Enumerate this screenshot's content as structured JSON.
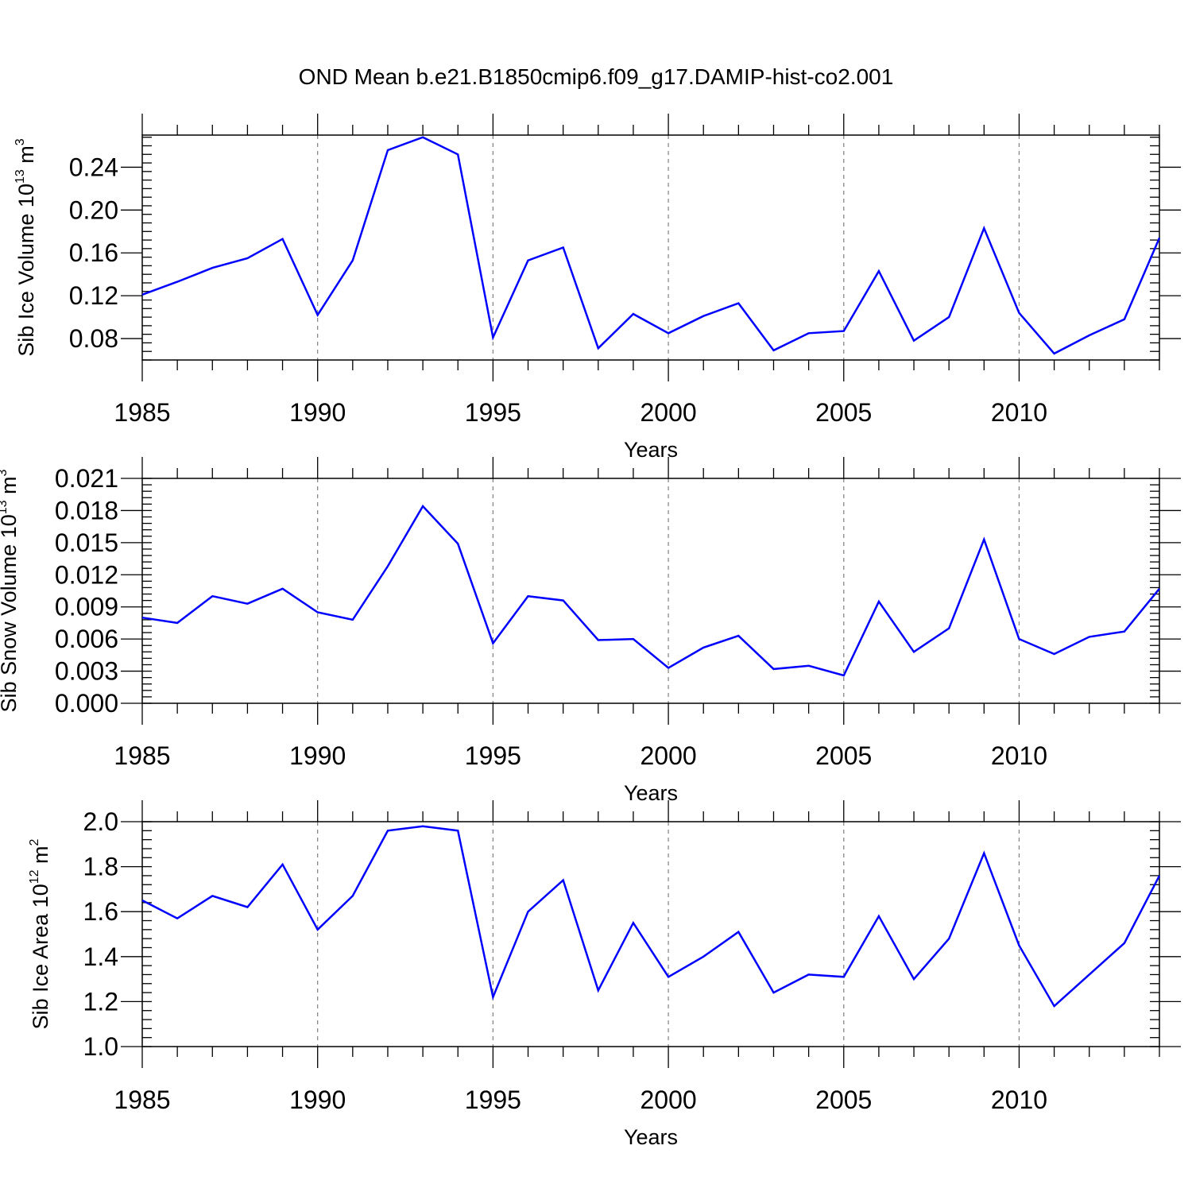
{
  "title": "OND Mean b.e21.B1850cmip6.f09_g17.DAMIP-hist-co2.001",
  "chart_data": [
    {
      "type": "line",
      "ylabel": {
        "text": "Sib Ice Volume 10",
        "exp": "13",
        "unit": " m",
        "unit_exp": "3"
      },
      "xlabel": "Years",
      "xlim": [
        1985,
        2014
      ],
      "ylim": [
        0.06,
        0.27
      ],
      "xticks": [
        1985,
        1990,
        1995,
        2000,
        2005,
        2010
      ],
      "xtick_labels": [
        "1985",
        "1990",
        "1995",
        "2000",
        "2005",
        "2010"
      ],
      "yticks": [
        0.08,
        0.12,
        0.16,
        0.2,
        0.24
      ],
      "ytick_labels": [
        "0.08",
        "0.12",
        "0.16",
        "0.20",
        "0.24"
      ],
      "y_minor_step": 0.008,
      "grid": "vertical-dashed",
      "color": "#0000ff",
      "x": [
        1985,
        1986,
        1987,
        1988,
        1989,
        1990,
        1991,
        1992,
        1993,
        1994,
        1995,
        1996,
        1997,
        1998,
        1999,
        2000,
        2001,
        2002,
        2003,
        2004,
        2005,
        2006,
        2007,
        2008,
        2009,
        2010,
        2011,
        2012,
        2013,
        2014
      ],
      "y": [
        0.121,
        0.133,
        0.146,
        0.155,
        0.173,
        0.102,
        0.153,
        0.256,
        0.268,
        0.252,
        0.081,
        0.153,
        0.165,
        0.071,
        0.103,
        0.085,
        0.101,
        0.113,
        0.069,
        0.085,
        0.087,
        0.143,
        0.078,
        0.1,
        0.183,
        0.104,
        0.066,
        0.083,
        0.098,
        0.174
      ]
    },
    {
      "type": "line",
      "ylabel": {
        "text": "Sib Snow Volume 10",
        "exp": "13",
        "unit": " m",
        "unit_exp": "3"
      },
      "xlabel": "Years",
      "xlim": [
        1985,
        2014
      ],
      "ylim": [
        0.0,
        0.021
      ],
      "xticks": [
        1985,
        1990,
        1995,
        2000,
        2005,
        2010
      ],
      "xtick_labels": [
        "1985",
        "1990",
        "1995",
        "2000",
        "2005",
        "2010"
      ],
      "yticks": [
        0.0,
        0.003,
        0.006,
        0.009,
        0.012,
        0.015,
        0.018,
        0.021
      ],
      "ytick_labels": [
        "0.000",
        "0.003",
        "0.006",
        "0.009",
        "0.012",
        "0.015",
        "0.018",
        "0.021"
      ],
      "y_minor_step": 0.0006,
      "grid": "vertical-dashed",
      "color": "#0000ff",
      "x": [
        1985,
        1986,
        1987,
        1988,
        1989,
        1990,
        1991,
        1992,
        1993,
        1994,
        1995,
        1996,
        1997,
        1998,
        1999,
        2000,
        2001,
        2002,
        2003,
        2004,
        2005,
        2006,
        2007,
        2008,
        2009,
        2010,
        2011,
        2012,
        2013,
        2014
      ],
      "y": [
        0.008,
        0.0075,
        0.01,
        0.0093,
        0.0107,
        0.0085,
        0.0078,
        0.0128,
        0.0184,
        0.0149,
        0.0056,
        0.01,
        0.0096,
        0.0059,
        0.006,
        0.0033,
        0.0052,
        0.0063,
        0.0032,
        0.0035,
        0.0026,
        0.0095,
        0.0048,
        0.007,
        0.0153,
        0.006,
        0.0046,
        0.0062,
        0.0067,
        0.0107
      ]
    },
    {
      "type": "line",
      "ylabel": {
        "text": "Sib Ice Area 10",
        "exp": "12",
        "unit": " m",
        "unit_exp": "2"
      },
      "xlabel": "Years",
      "xlim": [
        1985,
        2014
      ],
      "ylim": [
        1.0,
        2.0
      ],
      "xticks": [
        1985,
        1990,
        1995,
        2000,
        2005,
        2010
      ],
      "xtick_labels": [
        "1985",
        "1990",
        "1995",
        "2000",
        "2005",
        "2010"
      ],
      "yticks": [
        1.0,
        1.2,
        1.4,
        1.6,
        1.8,
        2.0
      ],
      "ytick_labels": [
        "1.0",
        "1.2",
        "1.4",
        "1.6",
        "1.8",
        "2.0"
      ],
      "y_minor_step": 0.04,
      "grid": "vertical-dashed",
      "color": "#0000ff",
      "x": [
        1985,
        1986,
        1987,
        1988,
        1989,
        1990,
        1991,
        1992,
        1993,
        1994,
        1995,
        1996,
        1997,
        1998,
        1999,
        2000,
        2001,
        2002,
        2003,
        2004,
        2005,
        2006,
        2007,
        2008,
        2009,
        2010,
        2011,
        2012,
        2013,
        2014
      ],
      "y": [
        1.65,
        1.57,
        1.67,
        1.62,
        1.81,
        1.52,
        1.67,
        1.96,
        1.98,
        1.96,
        1.22,
        1.6,
        1.74,
        1.25,
        1.55,
        1.31,
        1.4,
        1.51,
        1.24,
        1.32,
        1.31,
        1.58,
        1.3,
        1.48,
        1.86,
        1.45,
        1.18,
        1.32,
        1.46,
        1.76
      ]
    }
  ]
}
